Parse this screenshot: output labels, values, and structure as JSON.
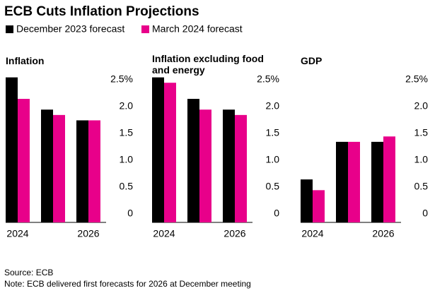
{
  "title": "ECB Cuts Inflation Projections",
  "source": "Source: ECB",
  "note": "Note: ECB delivered first forecasts for 2026 at December meeting",
  "chart_data": [
    {
      "type": "bar",
      "title": "Inflation",
      "categories": [
        "2024",
        null,
        "2026"
      ],
      "series": [
        {
          "name": "December 2023 forecast",
          "color": "#000000",
          "values": [
            2.7,
            2.1,
            1.9
          ]
        },
        {
          "name": "March 2024 forecast",
          "color": "#e8008a",
          "values": [
            2.3,
            2.0,
            1.9
          ]
        }
      ],
      "ylim": [
        0,
        2.8
      ],
      "yticks": [
        0,
        0.5,
        {
          "value": 1,
          "label": "1.0"
        },
        1.5,
        {
          "value": 2,
          "label": "2.0"
        },
        {
          "value": 2.5,
          "label": "2.5%"
        }
      ]
    },
    {
      "type": "bar",
      "title": "Inflation excluding food and energy",
      "categories": [
        "2024",
        null,
        "2026"
      ],
      "series": [
        {
          "name": "December 2023 forecast",
          "color": "#000000",
          "values": [
            2.7,
            2.3,
            2.1
          ]
        },
        {
          "name": "March 2024 forecast",
          "color": "#e8008a",
          "values": [
            2.6,
            2.1,
            2.0
          ]
        }
      ],
      "ylim": [
        0,
        2.8
      ],
      "yticks": [
        0,
        0.5,
        {
          "value": 1,
          "label": "1.0"
        },
        1.5,
        {
          "value": 2,
          "label": "2.0"
        },
        {
          "value": 2.5,
          "label": "2.5%"
        }
      ]
    },
    {
      "type": "bar",
      "title": "GDP",
      "categories": [
        "2024",
        null,
        "2026"
      ],
      "series": [
        {
          "name": "December 2023 forecast",
          "color": "#000000",
          "values": [
            0.8,
            1.5,
            1.5
          ]
        },
        {
          "name": "March 2024 forecast",
          "color": "#e8008a",
          "values": [
            0.6,
            1.5,
            1.6
          ]
        }
      ],
      "ylim": [
        0,
        2.8
      ],
      "yticks": [
        0,
        0.5,
        {
          "value": 1,
          "label": "1.0"
        },
        1.5,
        {
          "value": 2,
          "label": "2.0"
        },
        {
          "value": 2.5,
          "label": "2.5%"
        }
      ]
    }
  ]
}
